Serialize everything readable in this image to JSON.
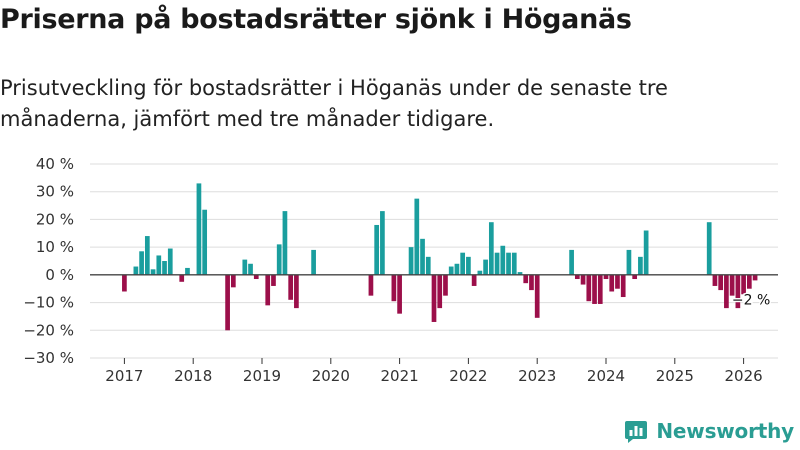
{
  "title": "Priserna på bostadsrätter sjönk i Höganäs",
  "subtitle": "Prisutveckling för bostadsrätter i Höganäs under de senaste tre månaderna, jämfört med tre månader tidigare.",
  "brand": {
    "name": "Newsworthy",
    "icon": "newsworthy-logo-icon"
  },
  "colors": {
    "positive": "#1a9e9e",
    "negative": "#9c0f4a",
    "grid": "#dddddd",
    "zero_line": "#444444",
    "text": "#333333"
  },
  "chart_data": {
    "type": "bar",
    "title": "Priserna på bostadsrätter sjönk i Höganäs",
    "xlabel": "",
    "ylabel": "",
    "ylim": [
      -30,
      40
    ],
    "y_ticks": [
      -30,
      -20,
      -10,
      0,
      10,
      20,
      30,
      40
    ],
    "y_tick_labels": [
      "−30 %",
      "−20 %",
      "−10 %",
      "0 %",
      "10 %",
      "20 %",
      "30 %",
      "40 %"
    ],
    "x_ticks": [
      "2017",
      "2018",
      "2019",
      "2020",
      "2021",
      "2022",
      "2023",
      "2024",
      "2025",
      "2026"
    ],
    "x_range": [
      "2016-07",
      "2026-07"
    ],
    "grid": true,
    "series": [
      {
        "name": "Prisutveckling",
        "points": [
          {
            "month": "2017-01",
            "value": -6
          },
          {
            "month": "2017-03",
            "value": 3
          },
          {
            "month": "2017-04",
            "value": 8.5
          },
          {
            "month": "2017-05",
            "value": 14
          },
          {
            "month": "2017-06",
            "value": 2
          },
          {
            "month": "2017-07",
            "value": 7
          },
          {
            "month": "2017-08",
            "value": 5
          },
          {
            "month": "2017-09",
            "value": 9.5
          },
          {
            "month": "2017-11",
            "value": -2.5
          },
          {
            "month": "2017-12",
            "value": 2.5
          },
          {
            "month": "2018-02",
            "value": 33
          },
          {
            "month": "2018-03",
            "value": 23.5
          },
          {
            "month": "2018-07",
            "value": -20
          },
          {
            "month": "2018-08",
            "value": -4.5
          },
          {
            "month": "2018-10",
            "value": 5.5
          },
          {
            "month": "2018-11",
            "value": 4
          },
          {
            "month": "2018-12",
            "value": -1.5
          },
          {
            "month": "2019-02",
            "value": -11
          },
          {
            "month": "2019-03",
            "value": -4
          },
          {
            "month": "2019-04",
            "value": 11
          },
          {
            "month": "2019-05",
            "value": 23
          },
          {
            "month": "2019-06",
            "value": -9
          },
          {
            "month": "2019-07",
            "value": -12
          },
          {
            "month": "2019-10",
            "value": 9
          },
          {
            "month": "2020-08",
            "value": -7.5
          },
          {
            "month": "2020-09",
            "value": 18
          },
          {
            "month": "2020-10",
            "value": 23
          },
          {
            "month": "2020-12",
            "value": -9.5
          },
          {
            "month": "2021-01",
            "value": -14
          },
          {
            "month": "2021-03",
            "value": 10
          },
          {
            "month": "2021-04",
            "value": 27.5
          },
          {
            "month": "2021-05",
            "value": 13
          },
          {
            "month": "2021-06",
            "value": 6.5
          },
          {
            "month": "2021-07",
            "value": -17
          },
          {
            "month": "2021-08",
            "value": -12
          },
          {
            "month": "2021-09",
            "value": -7.5
          },
          {
            "month": "2021-10",
            "value": 3
          },
          {
            "month": "2021-11",
            "value": 4
          },
          {
            "month": "2021-12",
            "value": 8
          },
          {
            "month": "2022-01",
            "value": 6.5
          },
          {
            "month": "2022-02",
            "value": -4
          },
          {
            "month": "2022-03",
            "value": 1.5
          },
          {
            "month": "2022-04",
            "value": 5.5
          },
          {
            "month": "2022-05",
            "value": 19
          },
          {
            "month": "2022-06",
            "value": 8
          },
          {
            "month": "2022-07",
            "value": 10.5
          },
          {
            "month": "2022-08",
            "value": 8
          },
          {
            "month": "2022-09",
            "value": 8
          },
          {
            "month": "2022-10",
            "value": 1
          },
          {
            "month": "2022-11",
            "value": -3
          },
          {
            "month": "2022-12",
            "value": -5.5
          },
          {
            "month": "2023-01",
            "value": -15.5
          },
          {
            "month": "2023-07",
            "value": 9
          },
          {
            "month": "2023-08",
            "value": -1.5
          },
          {
            "month": "2023-09",
            "value": -3.5
          },
          {
            "month": "2023-10",
            "value": -9.5
          },
          {
            "month": "2023-11",
            "value": -10.5
          },
          {
            "month": "2023-12",
            "value": -10.5
          },
          {
            "month": "2024-01",
            "value": -1.5
          },
          {
            "month": "2024-02",
            "value": -6
          },
          {
            "month": "2024-03",
            "value": -5
          },
          {
            "month": "2024-04",
            "value": -8
          },
          {
            "month": "2024-05",
            "value": 9
          },
          {
            "month": "2024-06",
            "value": -1.5
          },
          {
            "month": "2024-07",
            "value": 6.5
          },
          {
            "month": "2024-08",
            "value": 16
          },
          {
            "month": "2025-07",
            "value": 19
          },
          {
            "month": "2025-08",
            "value": -4
          },
          {
            "month": "2025-09",
            "value": -5.5
          },
          {
            "month": "2025-10",
            "value": -12
          },
          {
            "month": "2025-11",
            "value": -7.5
          },
          {
            "month": "2025-12",
            "value": -12
          },
          {
            "month": "2026-01",
            "value": -7
          },
          {
            "month": "2026-02",
            "value": -5
          },
          {
            "month": "2026-03",
            "value": -2
          }
        ]
      }
    ],
    "annotations": [
      {
        "month": "2026-03",
        "text": "−2 %"
      }
    ]
  }
}
